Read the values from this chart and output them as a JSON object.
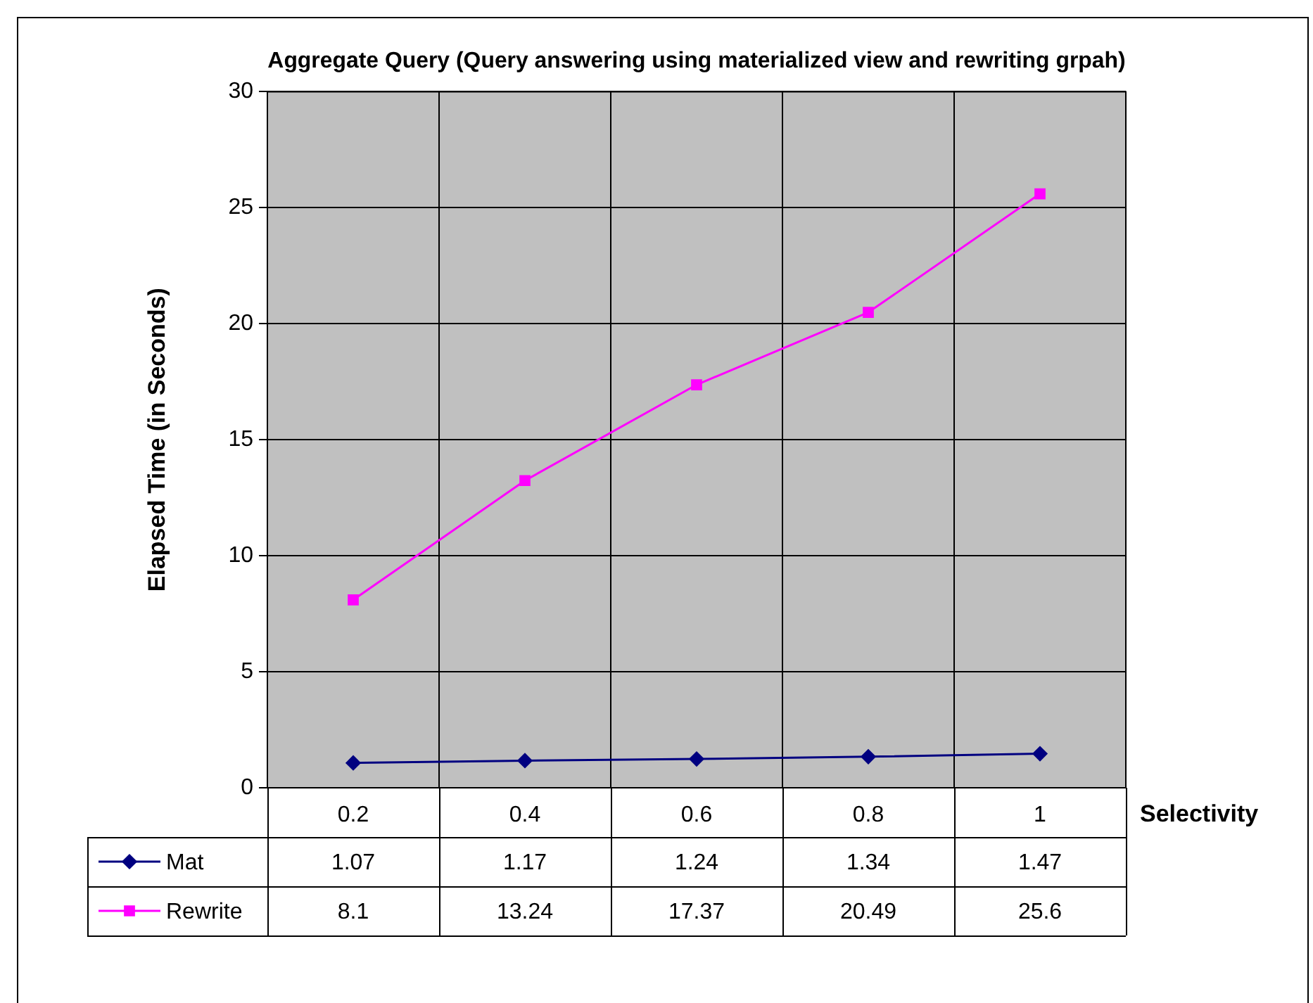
{
  "chart_data": {
    "type": "line",
    "title": "Aggregate Query (Query answering using materialized view and rewriting grpah)",
    "xlabel": "Selectivity",
    "ylabel": "Elapsed Time (in Seconds)",
    "categories": [
      "0.2",
      "0.4",
      "0.6",
      "0.8",
      "1"
    ],
    "series": [
      {
        "name": "Mat",
        "color": "#000080",
        "marker": "diamond",
        "values": [
          1.07,
          1.17,
          1.24,
          1.34,
          1.47
        ]
      },
      {
        "name": "Rewrite",
        "color": "#ff00ff",
        "marker": "square",
        "values": [
          8.1,
          13.24,
          17.37,
          20.49,
          25.6
        ]
      }
    ],
    "ylim": [
      0,
      30
    ],
    "yticks": [
      0,
      5,
      10,
      15,
      20,
      25,
      30
    ],
    "grid": true,
    "legend": "bottom",
    "data_labels": true
  }
}
